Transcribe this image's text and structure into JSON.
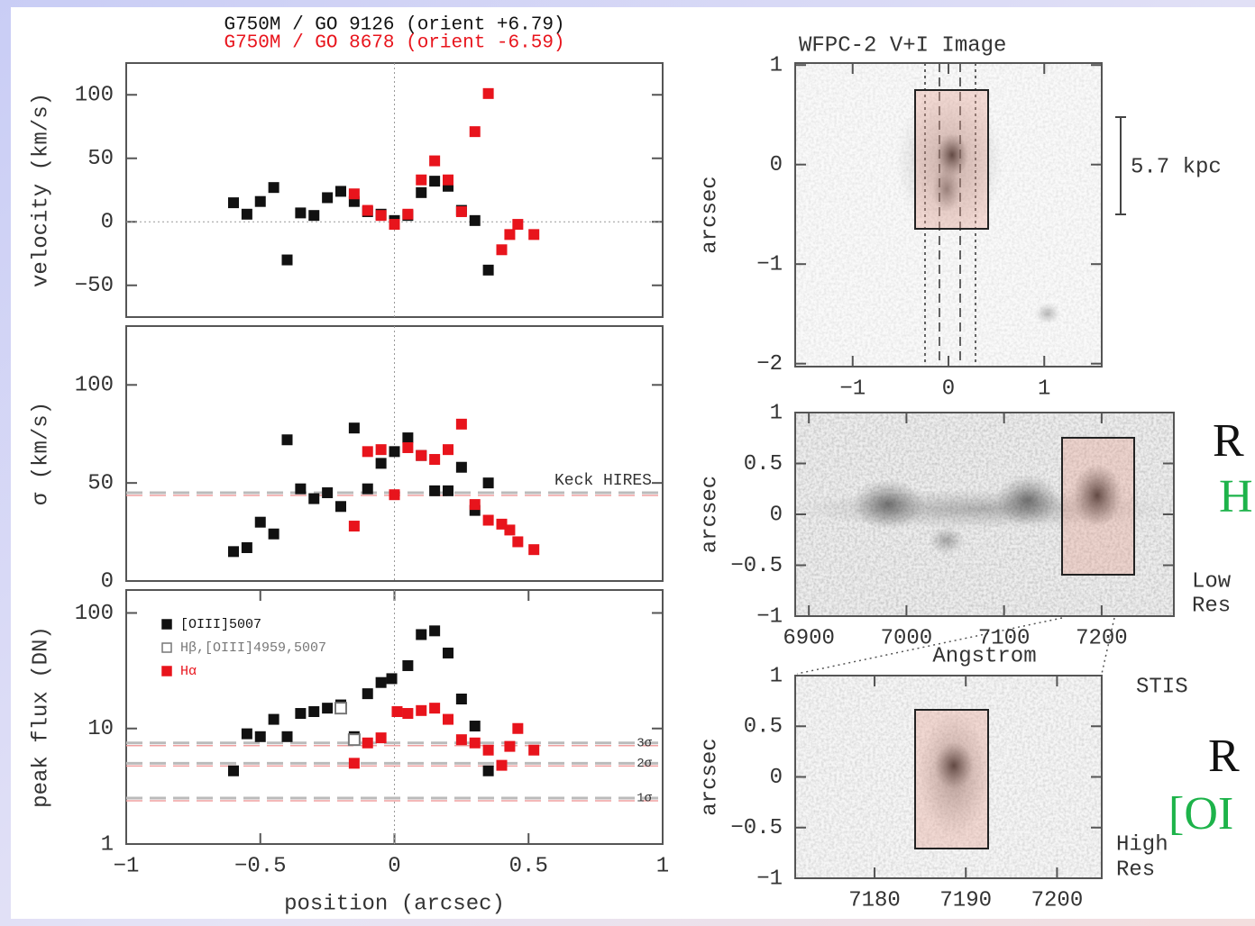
{
  "chart_data": [
    {
      "type": "scatter",
      "titles": [
        "G750M / GO 9126  (orient +6.79)",
        "G750M / GO 8678  (orient -6.59)"
      ],
      "ylabel": "velocity (km/s)",
      "xlim": [
        -1,
        1
      ],
      "ylim": [
        -75,
        125
      ],
      "yticks": [
        {
          "value": -50,
          "label": "−50"
        },
        0,
        50,
        100
      ],
      "hline": 0,
      "vline": 0,
      "series": [
        {
          "name": "[OIII]5007",
          "color": "#111111",
          "marker": "filled",
          "x": [
            -0.6,
            -0.55,
            -0.5,
            -0.45,
            -0.4,
            -0.35,
            -0.3,
            -0.25,
            -0.2,
            -0.15,
            -0.1,
            -0.05,
            0,
            0.05,
            0.1,
            0.15,
            0.2,
            0.25,
            0.3,
            0.35
          ],
          "values": [
            15,
            6,
            16,
            27,
            -30,
            7,
            5,
            19,
            24,
            16,
            8,
            6,
            1,
            5,
            23,
            32,
            28,
            9,
            1,
            -38
          ]
        },
        {
          "name": "Hα",
          "color": "#e8141c",
          "marker": "filled",
          "x": [
            -0.15,
            -0.1,
            -0.05,
            0,
            0.05,
            0.1,
            0.15,
            0.2,
            0.25,
            0.3,
            0.35,
            0.4,
            0.43,
            0.46,
            0.52
          ],
          "values": [
            22,
            9,
            5,
            -2,
            6,
            33,
            48,
            33,
            8,
            71,
            101,
            -22,
            -10,
            -2,
            -10
          ]
        }
      ]
    },
    {
      "type": "scatter",
      "ylabel": "σ (km/s)",
      "xlim": [
        -1,
        1
      ],
      "ylim": [
        0,
        130
      ],
      "yticks": [
        0,
        50,
        100
      ],
      "vline": 0,
      "ref_lines": [
        {
          "value": 45,
          "label": "Keck HIRES"
        }
      ],
      "series": [
        {
          "name": "[OIII]5007",
          "color": "#111111",
          "marker": "filled",
          "x": [
            -0.6,
            -0.55,
            -0.5,
            -0.45,
            -0.4,
            -0.35,
            -0.3,
            -0.25,
            -0.2,
            -0.15,
            -0.1,
            -0.05,
            0,
            0.05,
            0.1,
            0.15,
            0.2,
            0.25,
            0.3,
            0.35
          ],
          "values": [
            15,
            17,
            30,
            24,
            72,
            47,
            42,
            45,
            38,
            78,
            47,
            60,
            66,
            73,
            64,
            46,
            46,
            58,
            36,
            50
          ]
        },
        {
          "name": "Hα",
          "color": "#e8141c",
          "marker": "filled",
          "x": [
            -0.15,
            -0.1,
            -0.05,
            0,
            0.05,
            0.1,
            0.15,
            0.2,
            0.25,
            0.3,
            0.35,
            0.4,
            0.43,
            0.46,
            0.52
          ],
          "values": [
            28,
            66,
            67,
            44,
            68,
            64,
            62,
            67,
            80,
            39,
            31,
            29,
            26,
            20,
            16
          ]
        }
      ]
    },
    {
      "type": "scatter",
      "ylabel": "peak flux (DN)",
      "xlabel": "position (arcsec)",
      "log_y": true,
      "legend": "upper left",
      "xlim": [
        -1,
        1
      ],
      "ylim": [
        1,
        158
      ],
      "yticks": [
        1,
        10,
        100
      ],
      "vline": 0,
      "xticks": [
        {
          "value": -1,
          "label": "−1"
        },
        {
          "value": -0.5,
          "label": "−0.5"
        },
        0,
        0.5,
        1
      ],
      "ref_lines": [
        {
          "value": 7.5,
          "label": "3σ"
        },
        {
          "value": 5,
          "label": "2σ"
        },
        {
          "value": 2.5,
          "label": "1σ"
        }
      ],
      "series": [
        {
          "name": "[OIII]5007",
          "color": "#111111",
          "marker": "filled",
          "x": [
            -0.6,
            -0.55,
            -0.5,
            -0.45,
            -0.4,
            -0.35,
            -0.3,
            -0.25,
            -0.2,
            -0.15,
            -0.1,
            -0.05,
            -0.01,
            0.05,
            0.1,
            0.15,
            0.2,
            0.25,
            0.3,
            0.35
          ],
          "values": [
            4.3,
            9,
            8.5,
            12,
            8.5,
            13.5,
            14,
            15,
            16,
            8.5,
            20,
            25,
            27,
            35,
            65,
            70,
            45,
            18,
            10.5,
            4.3
          ]
        },
        {
          "name": "Hβ,[OIII]4959,5007",
          "color": "#777777",
          "marker": "hollow",
          "x": [
            -0.2,
            -0.15
          ],
          "values": [
            15,
            8
          ]
        },
        {
          "name": "Hα",
          "color": "#e8141c",
          "marker": "filled",
          "x": [
            -0.15,
            -0.1,
            -0.05,
            0.01,
            0.05,
            0.1,
            0.15,
            0.2,
            0.25,
            0.3,
            0.35,
            0.4,
            0.43,
            0.46,
            0.52
          ],
          "values": [
            5,
            7.5,
            8.3,
            14,
            13.5,
            14.3,
            15,
            12,
            8,
            7.5,
            6.5,
            4.8,
            7,
            10,
            6.5
          ]
        }
      ]
    },
    {
      "type": "image",
      "title": "WFPC-2 V+I Image",
      "ylabel": "arcsec",
      "scale_bar": "5.7 kpc",
      "xlim": [
        -1.6,
        1.6
      ],
      "ylim": [
        -2.03,
        1.02
      ],
      "xticks": [
        {
          "value": -1,
          "label": "−1"
        },
        0,
        1
      ],
      "yticks": [
        {
          "value": -2,
          "label": "−2"
        },
        {
          "value": -1,
          "label": "−1"
        },
        0,
        1
      ]
    },
    {
      "type": "image",
      "ylabel": "arcsec",
      "xlabel": "Angstrom",
      "labels": [
        "Low",
        "Res",
        "R",
        "H"
      ],
      "xlim": [
        6886,
        7274
      ],
      "ylim": [
        -1,
        1
      ],
      "xticks": [
        6900,
        7000,
        7100,
        7200
      ],
      "yticks": [
        {
          "value": -1,
          "label": "−1"
        },
        {
          "value": -0.5,
          "label": "−0.5"
        },
        0,
        0.5,
        1
      ]
    },
    {
      "type": "image",
      "ylabel": "arcsec",
      "labels": [
        "STIS",
        "High",
        "Res",
        "R",
        "[OI"
      ],
      "xlim": [
        7171.3,
        7204.9
      ],
      "ylim": [
        -1,
        1
      ],
      "xticks": [
        7180,
        7190,
        7200
      ],
      "yticks": [
        {
          "value": -1,
          "label": "−1"
        },
        {
          "value": -0.5,
          "label": "−0.5"
        },
        0,
        0.5,
        1
      ]
    }
  ]
}
